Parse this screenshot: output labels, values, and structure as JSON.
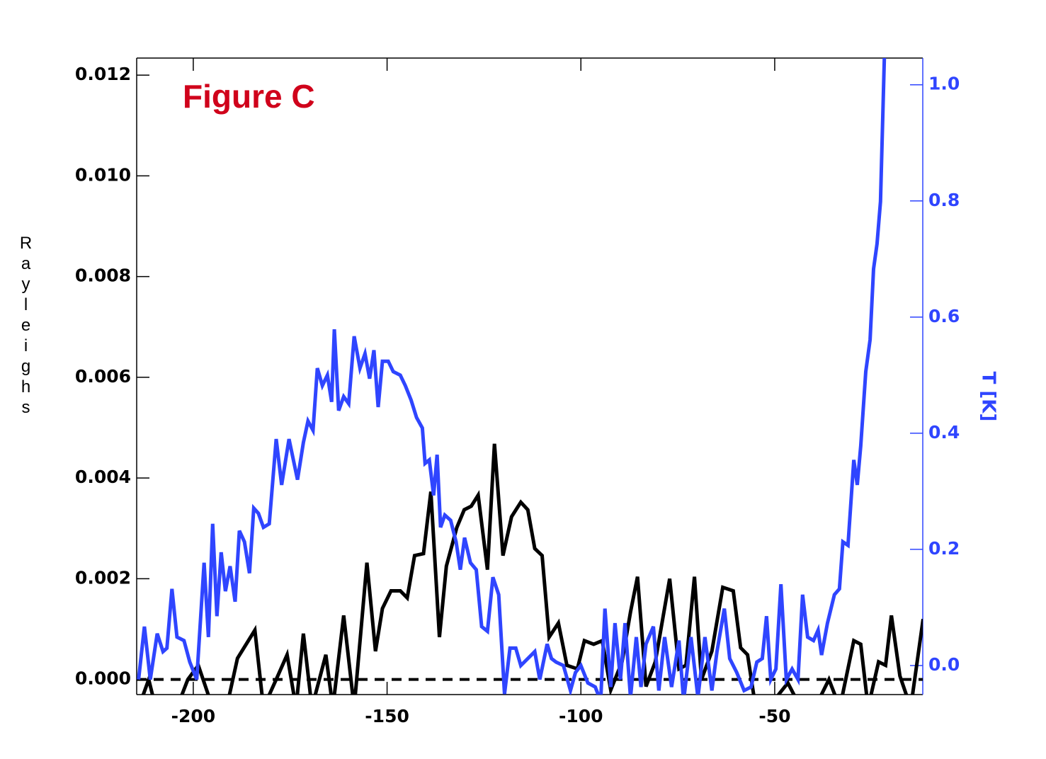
{
  "chart_data": {
    "type": "line",
    "title": "Figure C",
    "title_color": "#d0021b",
    "y_label": "Rayleighs",
    "y2_label": "T [K]",
    "xlim": [
      -214.6,
      -11.8
    ],
    "xticks": [
      -200,
      -150,
      -100,
      -50
    ],
    "ylim": [
      -0.0003,
      0.01234
    ],
    "yticks": [
      {
        "value": 0,
        "label": "0.000"
      },
      {
        "value": 0.002,
        "label": "0.002"
      },
      {
        "value": 0.004,
        "label": "0.004"
      },
      {
        "value": 0.006,
        "label": "0.006"
      },
      {
        "value": 0.008,
        "label": "0.008"
      },
      {
        "value": 0.01,
        "label": "0.010"
      },
      {
        "value": 0.012,
        "label": "0.012"
      }
    ],
    "y2lim": [
      -0.05,
      1.046
    ],
    "y2ticks": [
      {
        "value": 0,
        "label": "0.0"
      },
      {
        "value": 0.2,
        "label": "0.2"
      },
      {
        "value": 0.4,
        "label": "0.4"
      },
      {
        "value": 0.6,
        "label": "0.6"
      },
      {
        "value": 0.8,
        "label": "0.8"
      },
      {
        "value": 1,
        "label": "1.0"
      }
    ],
    "y2_color": "#2f45ff",
    "hline": 0,
    "series": [
      {
        "color": "#000000",
        "axis": "y",
        "x": [
          -214.1,
          -211.5,
          -209.7,
          -204.2,
          -201.4,
          -198.7,
          -195.0,
          -191.4,
          -188.6,
          -184.1,
          -181.9,
          -178.6,
          -175.8,
          -173.5,
          -171.6,
          -169.4,
          -165.8,
          -164.0,
          -161.2,
          -158.5,
          -155.2,
          -153.0,
          -151.2,
          -149.0,
          -146.6,
          -144.8,
          -142.9,
          -140.6,
          -138.7,
          -136.5,
          -134.7,
          -132.0,
          -130.1,
          -128.3,
          -126.5,
          -124.1,
          -122.3,
          -120.1,
          -117.9,
          -115.5,
          -113.7,
          -111.9,
          -110.0,
          -108.2,
          -105.8,
          -103.6,
          -100.9,
          -99.1,
          -96.7,
          -94.5,
          -92.3,
          -89.4,
          -87.2,
          -85.4,
          -83.2,
          -80.8,
          -77.1,
          -74.7,
          -72.9,
          -70.7,
          -68.9,
          -66.2,
          -63.4,
          -60.7,
          -58.8,
          -57.0,
          -55.2,
          -51.5,
          -48.8,
          -46.6,
          -43.3,
          -39.6,
          -36.0,
          -33.2,
          -29.6,
          -27.8,
          -25.9,
          -23.2,
          -21.4,
          -19.9,
          -17.7,
          -14.9,
          -11.7
        ],
        "values": [
          -0.00056,
          0,
          -0.00056,
          -0.00056,
          0,
          0.00028,
          -0.00056,
          -0.00056,
          0.00042,
          0.00098,
          -0.00056,
          0,
          0.00049,
          -0.00056,
          0.00091,
          -0.00056,
          0.00049,
          -0.00056,
          0.00127,
          -0.00056,
          0.00232,
          0.00056,
          0.00141,
          0.00176,
          0.00176,
          0.00162,
          0.00246,
          0.0025,
          0.00373,
          0.00084,
          0.00225,
          0.00302,
          0.00337,
          0.00344,
          0.00366,
          0.00218,
          0.00468,
          0.00246,
          0.00323,
          0.00352,
          0.00337,
          0.0026,
          0.00246,
          0.00084,
          0.00112,
          0.00028,
          0.00021,
          0.00077,
          0.0007,
          0.00077,
          -0.00021,
          0.00035,
          0.00134,
          0.00204,
          -0.00014,
          0.00035,
          0.002,
          0.00021,
          0.00028,
          0.00204,
          0,
          0.00056,
          0.00183,
          0.00176,
          0.00063,
          0.00049,
          -0.00042,
          -0.00056,
          -0.00028,
          -7e-05,
          -0.00056,
          -0.00056,
          0,
          -0.00056,
          0.00077,
          0.0007,
          -0.00056,
          0.00035,
          0.00028,
          0.00127,
          7e-05,
          -0.00056,
          0.0012
        ]
      },
      {
        "color": "#2f45ff",
        "axis": "y2",
        "x": [
          -214.1,
          -212.6,
          -211.1,
          -209.3,
          -207.8,
          -206.8,
          -205.5,
          -204.2,
          -202.4,
          -200.9,
          -199.1,
          -197.2,
          -196.1,
          -195.0,
          -193.9,
          -192.8,
          -191.7,
          -190.5,
          -189.2,
          -188.1,
          -186.8,
          -185.5,
          -184.4,
          -183.2,
          -181.9,
          -180.4,
          -178.6,
          -177.2,
          -175.3,
          -173.1,
          -171.6,
          -170.4,
          -169.1,
          -168.0,
          -166.7,
          -165.4,
          -164.3,
          -163.6,
          -162.5,
          -161.2,
          -159.9,
          -158.5,
          -157.0,
          -155.7,
          -154.5,
          -153.4,
          -152.3,
          -151.2,
          -149.7,
          -148.4,
          -146.6,
          -145.3,
          -143.8,
          -142.4,
          -140.9,
          -140.2,
          -139.1,
          -138.0,
          -137.1,
          -136.2,
          -135.1,
          -133.6,
          -132.2,
          -131.1,
          -130.0,
          -128.5,
          -127.0,
          -125.6,
          -124.1,
          -122.7,
          -121.2,
          -119.7,
          -118.3,
          -116.8,
          -115.5,
          -113.7,
          -111.9,
          -110.6,
          -108.7,
          -107.6,
          -106.4,
          -104.5,
          -102.7,
          -101.4,
          -100.0,
          -98.2,
          -96.3,
          -94.9,
          -93.8,
          -92.3,
          -91.2,
          -89.8,
          -88.6,
          -87.2,
          -85.7,
          -84.5,
          -83.2,
          -81.3,
          -79.9,
          -78.4,
          -76.6,
          -74.7,
          -73.5,
          -71.6,
          -69.8,
          -68.0,
          -66.2,
          -64.9,
          -63.0,
          -61.6,
          -59.8,
          -57.9,
          -56.1,
          -54.6,
          -53.2,
          -52.1,
          -51.0,
          -49.7,
          -48.4,
          -47.0,
          -45.5,
          -44.0,
          -42.8,
          -41.5,
          -40.0,
          -38.8,
          -37.9,
          -36.4,
          -34.6,
          -33.3,
          -32.4,
          -31.1,
          -29.6,
          -28.7,
          -27.8,
          -26.5,
          -25.4,
          -24.5,
          -23.6,
          -22.7,
          -21.7
        ],
        "values": [
          -0.024,
          0.067,
          -0.024,
          0.055,
          0.024,
          0.03,
          0.132,
          0.049,
          0.043,
          0.006,
          -0.024,
          0.177,
          0.049,
          0.244,
          0.085,
          0.195,
          0.128,
          0.171,
          0.11,
          0.232,
          0.213,
          0.159,
          0.271,
          0.262,
          0.238,
          0.244,
          0.39,
          0.311,
          0.39,
          0.32,
          0.384,
          0.421,
          0.405,
          0.512,
          0.482,
          0.5,
          0.454,
          0.579,
          0.439,
          0.463,
          0.451,
          0.567,
          0.512,
          0.537,
          0.494,
          0.543,
          0.445,
          0.524,
          0.524,
          0.506,
          0.5,
          0.482,
          0.457,
          0.427,
          0.409,
          0.348,
          0.354,
          0.293,
          0.363,
          0.238,
          0.259,
          0.25,
          0.213,
          0.165,
          0.22,
          0.177,
          0.165,
          0.067,
          0.059,
          0.152,
          0.122,
          -0.049,
          0.03,
          0.03,
          0,
          0.012,
          0.024,
          -0.024,
          0.037,
          0.012,
          0.006,
          0,
          -0.043,
          -0.012,
          0,
          -0.03,
          -0.037,
          -0.061,
          0.098,
          -0.037,
          0.073,
          -0.024,
          0.073,
          -0.055,
          0.049,
          -0.037,
          0.037,
          0.067,
          -0.043,
          0.049,
          -0.037,
          0.043,
          -0.061,
          0.049,
          -0.055,
          0.049,
          -0.043,
          0.024,
          0.098,
          0.012,
          -0.012,
          -0.043,
          -0.037,
          0.006,
          0.012,
          0.085,
          -0.024,
          -0.006,
          0.14,
          -0.024,
          -0.006,
          -0.024,
          0.122,
          0.049,
          0.043,
          0.061,
          0.018,
          0.073,
          0.122,
          0.132,
          0.213,
          0.207,
          0.354,
          0.311,
          0.378,
          0.506,
          0.561,
          0.683,
          0.726,
          0.799,
          1.049
        ]
      }
    ]
  }
}
